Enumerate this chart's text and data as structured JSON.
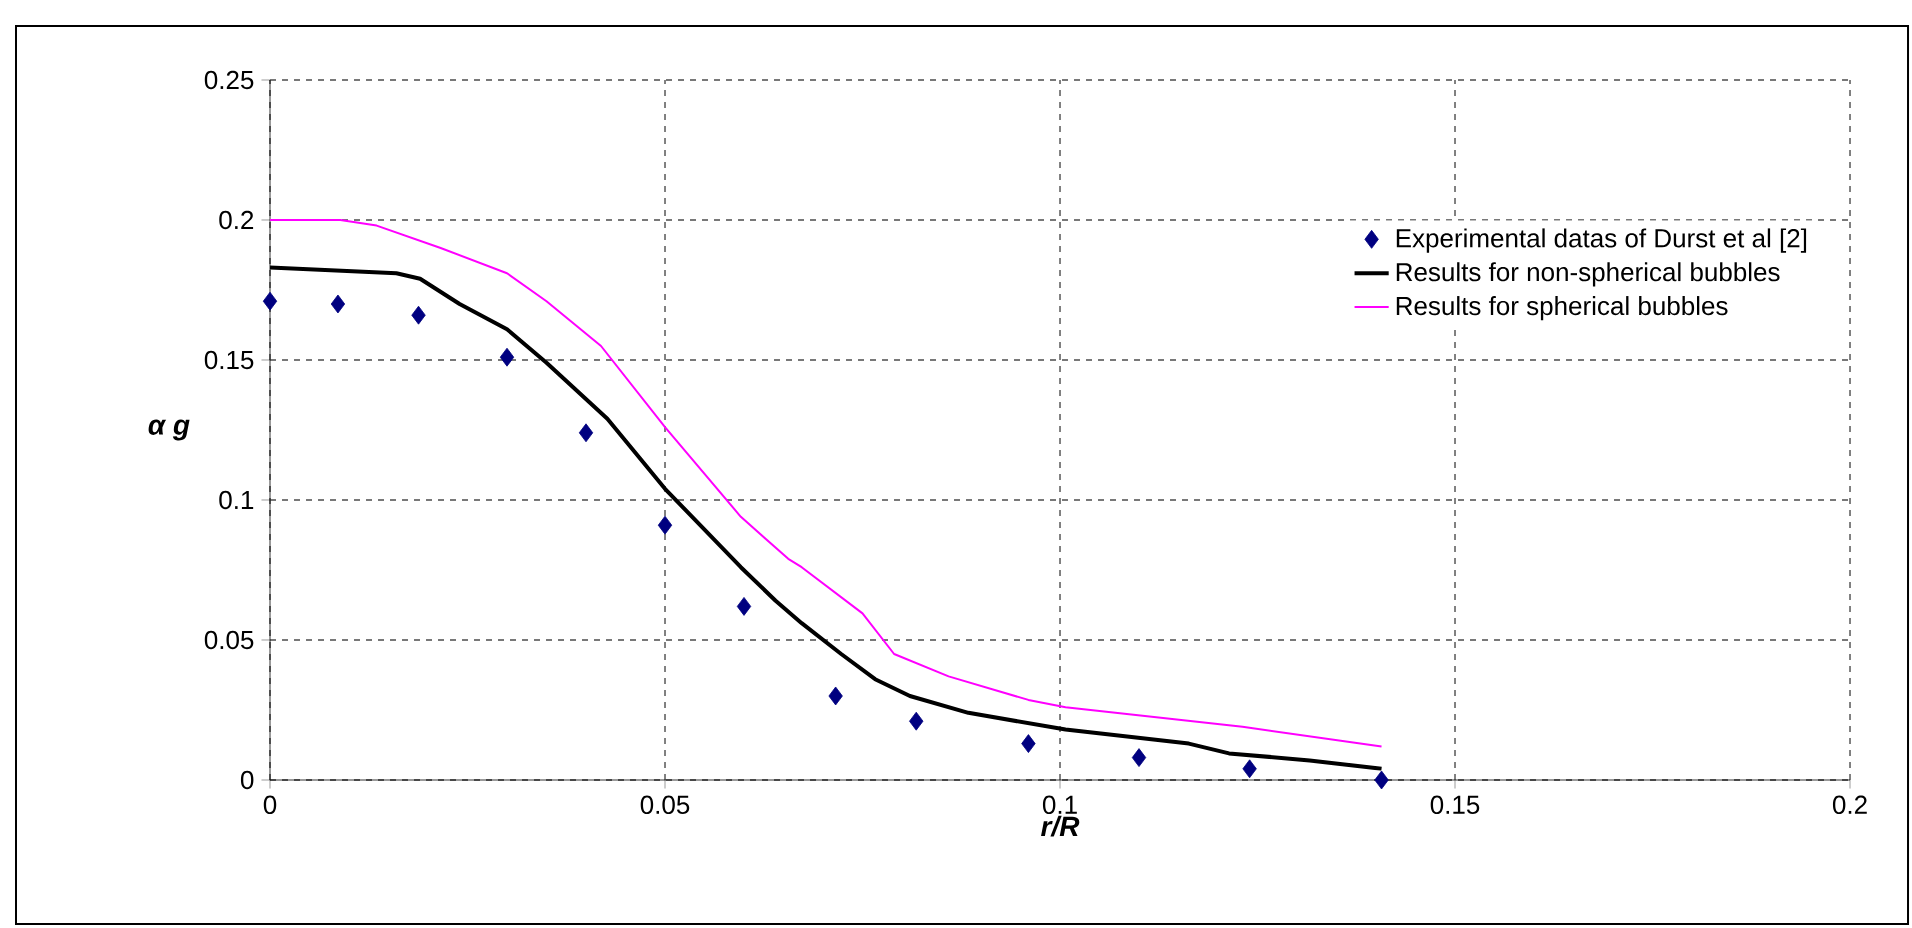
{
  "chart_data": {
    "type": "line",
    "xlabel": "r/R",
    "ylabel": "α g",
    "xlim": [
      0,
      0.2
    ],
    "xticks": [
      0,
      0.05,
      0.1,
      0.15,
      0.2
    ],
    "ylim": [
      0,
      0.25
    ],
    "yticks": [
      0,
      0.05,
      0.1,
      0.15,
      0.2,
      0.25
    ],
    "grid": true,
    "legend": "top right",
    "series": [
      {
        "name": "Experimental datas of Durst et al [2]",
        "type": "scatter",
        "marker": "diamond",
        "color": "#000080",
        "x": [
          0,
          0.0086,
          0.0188,
          0.03,
          0.04,
          0.05,
          0.06,
          0.0716,
          0.0818,
          0.096,
          0.11,
          0.124,
          0.1407
        ],
        "values": [
          0.171,
          0.17,
          0.166,
          0.151,
          0.124,
          0.091,
          0.062,
          0.03,
          0.021,
          0.013,
          0.008,
          0.004,
          0.0
        ]
      },
      {
        "name": "Results for non-spherical bubbles",
        "color": "#000000",
        "x": [
          0,
          0.016,
          0.019,
          0.024,
          0.03,
          0.035,
          0.0427,
          0.05,
          0.0596,
          0.064,
          0.0673,
          0.0723,
          0.0766,
          0.081,
          0.0884,
          0.1007,
          0.1163,
          0.1214,
          0.1316,
          0.1407
        ],
        "values": [
          0.183,
          0.181,
          0.179,
          0.17,
          0.161,
          0.149,
          0.129,
          0.104,
          0.076,
          0.064,
          0.056,
          0.045,
          0.036,
          0.03,
          0.024,
          0.018,
          0.013,
          0.0095,
          0.007,
          0.004
        ]
      },
      {
        "name": "Results for spherical bubbles",
        "color": "#ff00ff",
        "x": [
          0,
          0.0089,
          0.0135,
          0.0216,
          0.03,
          0.035,
          0.0419,
          0.05,
          0.0596,
          0.0656,
          0.0673,
          0.075,
          0.079,
          0.0859,
          0.096,
          0.1007,
          0.1231,
          0.1407
        ],
        "values": [
          0.2,
          0.2,
          0.198,
          0.19,
          0.181,
          0.171,
          0.155,
          0.126,
          0.094,
          0.079,
          0.076,
          0.0595,
          0.045,
          0.037,
          0.0286,
          0.026,
          0.019,
          0.012
        ]
      }
    ]
  }
}
